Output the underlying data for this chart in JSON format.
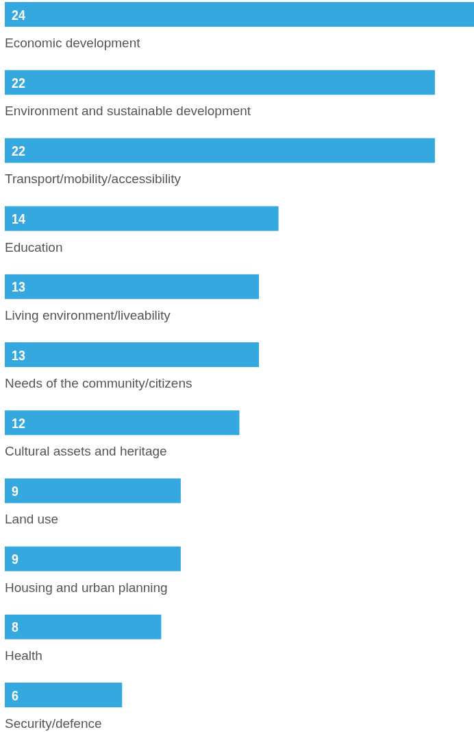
{
  "chart_data": {
    "type": "bar",
    "orientation": "horizontal",
    "data_labels": true,
    "color": "#35a8e0",
    "categories": [
      "Economic development",
      "Environment and sustainable development",
      "Transport/mobility/accessibility",
      "Education",
      "Living environment/liveability",
      "Needs of the community/citizens",
      "Cultural assets and heritage",
      "Land use",
      "Housing and urban planning",
      "Health",
      "Security/defence"
    ],
    "values": [
      24,
      22,
      22,
      14,
      13,
      13,
      12,
      9,
      9,
      8,
      6
    ]
  }
}
